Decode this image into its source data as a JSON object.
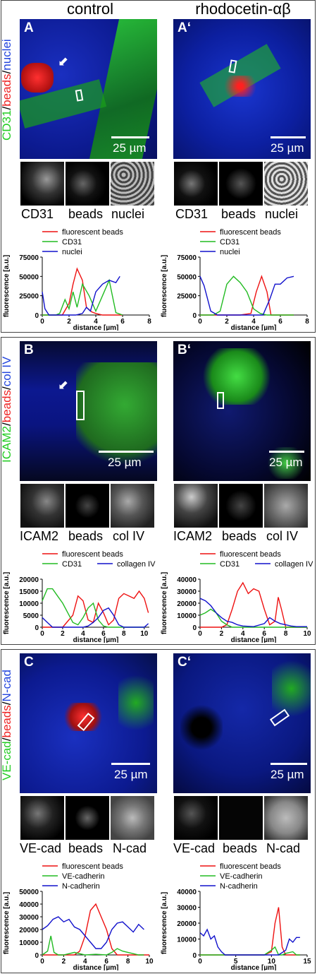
{
  "columns": {
    "left": "control",
    "right": "rhodocetin-αβ"
  },
  "rows": [
    {
      "side_label": [
        "CD31",
        "/",
        "beads",
        "/",
        "nuclei"
      ],
      "side_colors": [
        "#22cc22",
        "#000000",
        "#ee2222",
        "#000000",
        "#2244dd"
      ],
      "left": {
        "corner": "A",
        "scale": "25 µm",
        "thumbs": [
          "CD31",
          "beads",
          "nuclei"
        ]
      },
      "right": {
        "corner": "A‘",
        "scale": "25 µm",
        "thumbs": [
          "CD31",
          "beads",
          "nuclei"
        ]
      }
    },
    {
      "side_label": [
        "ICAM2",
        "/",
        "beads",
        "/",
        "col IV"
      ],
      "side_colors": [
        "#22cc22",
        "#000000",
        "#ee2222",
        "#000000",
        "#2244dd"
      ],
      "left": {
        "corner": "B",
        "scale": "25 µm",
        "thumbs": [
          "ICAM2",
          "beads",
          "col IV"
        ]
      },
      "right": {
        "corner": "B‘",
        "scale": "25 µm",
        "thumbs": [
          "ICAM2",
          "beads",
          "col IV"
        ]
      }
    },
    {
      "side_label": [
        "VE-cad",
        "/",
        "beads",
        "/",
        "N-cad"
      ],
      "side_colors": [
        "#22cc22",
        "#000000",
        "#ee2222",
        "#000000",
        "#2244dd"
      ],
      "left": {
        "corner": "C",
        "scale": "25 µm",
        "thumbs": [
          "VE-cad",
          "beads",
          "N-cad"
        ]
      },
      "right": {
        "corner": "C‘",
        "scale": "25 µm",
        "thumbs": [
          "VE-cad",
          "beads",
          "N-cad"
        ]
      }
    }
  ],
  "colors": {
    "red": "#ee1111",
    "green": "#22bb22",
    "blue": "#1111cc"
  },
  "chart_data": [
    {
      "id": "A-left",
      "type": "line",
      "ylabel": "fluorescence [a.u.]",
      "xlabel": "distance [µm]",
      "xlim": [
        0,
        8
      ],
      "xticks": [
        0,
        2,
        4,
        6,
        8
      ],
      "ylim": [
        0,
        75000
      ],
      "yticks": [
        0,
        25000,
        50000,
        75000
      ],
      "legend": [
        "fluorescent beads",
        "CD31",
        "nuclei"
      ],
      "series": [
        {
          "name": "fluorescent beads",
          "color": "red",
          "x": [
            0,
            0.5,
            1,
            1.5,
            2,
            2.3,
            2.6,
            3,
            3.3,
            3.7,
            4,
            4.5,
            5,
            5.5,
            6
          ],
          "y": [
            0,
            0,
            0,
            0,
            15000,
            40000,
            60000,
            45000,
            10000,
            4000,
            2000,
            0,
            0,
            0,
            0
          ]
        },
        {
          "name": "CD31",
          "color": "green",
          "x": [
            0,
            0.5,
            1,
            1.3,
            1.7,
            2,
            2.3,
            2.6,
            3,
            3.5,
            4,
            4.5,
            5,
            5.5,
            6
          ],
          "y": [
            0,
            0,
            0,
            2000,
            20000,
            8000,
            30000,
            10000,
            40000,
            25000,
            5000,
            25000,
            45000,
            3000,
            0
          ]
        },
        {
          "name": "nuclei",
          "color": "blue",
          "x": [
            0,
            0.2,
            0.5,
            1,
            1.5,
            2,
            2.5,
            3,
            3.3,
            3.6,
            4,
            4.5,
            5,
            5.5,
            5.8
          ],
          "y": [
            30000,
            8000,
            0,
            0,
            0,
            0,
            0,
            2000,
            10000,
            5000,
            30000,
            40000,
            45000,
            42000,
            50000
          ]
        }
      ]
    },
    {
      "id": "A-right",
      "type": "line",
      "ylabel": "fluorescence [a.u.]",
      "xlabel": "distance [µm]",
      "xlim": [
        0,
        8
      ],
      "xticks": [
        0,
        2,
        4,
        6,
        8
      ],
      "ylim": [
        0,
        75000
      ],
      "yticks": [
        0,
        25000,
        50000,
        75000
      ],
      "legend": [
        "fluorescent beads",
        "CD31",
        "nuclei"
      ],
      "series": [
        {
          "name": "fluorescent beads",
          "color": "red",
          "x": [
            0,
            1,
            2,
            3,
            3.8,
            4.2,
            4.6,
            5,
            5.3,
            6,
            7
          ],
          "y": [
            0,
            0,
            0,
            0,
            2000,
            30000,
            50000,
            30000,
            0,
            0,
            0
          ]
        },
        {
          "name": "CD31",
          "color": "green",
          "x": [
            0,
            1,
            1.5,
            2,
            2.5,
            3,
            3.5,
            4,
            4.5,
            5,
            6,
            7
          ],
          "y": [
            0,
            0,
            5000,
            40000,
            50000,
            42000,
            30000,
            8000,
            2000,
            0,
            0,
            0
          ]
        },
        {
          "name": "nuclei",
          "color": "blue",
          "x": [
            0,
            0.3,
            0.8,
            1.3,
            2,
            3,
            4,
            4.7,
            5.2,
            5.6,
            6,
            6.5,
            7
          ],
          "y": [
            50000,
            38000,
            5000,
            0,
            0,
            0,
            0,
            0,
            20000,
            40000,
            40000,
            48000,
            50000
          ]
        }
      ]
    },
    {
      "id": "B-left",
      "type": "line",
      "ylabel": "fluorescence [a.u.]",
      "xlabel": "distance [µm]",
      "xlim": [
        0,
        10.5
      ],
      "xticks": [
        0,
        2,
        4,
        6,
        8,
        10
      ],
      "ylim": [
        0,
        20000
      ],
      "yticks": [
        0,
        5000,
        10000,
        15000,
        20000
      ],
      "legend": [
        "fluorescent beads",
        "CD31",
        "collagen IV"
      ],
      "series": [
        {
          "name": "fluorescent beads",
          "color": "red",
          "x": [
            0,
            1,
            2,
            3,
            3.5,
            4,
            4.5,
            5,
            5.5,
            6,
            6.5,
            7,
            7.5,
            8,
            8.5,
            9,
            9.5,
            10,
            10.4
          ],
          "y": [
            0,
            0,
            0,
            5000,
            13000,
            11000,
            3000,
            2000,
            10000,
            6000,
            1000,
            3000,
            12000,
            14000,
            13000,
            12000,
            15000,
            12000,
            6000
          ]
        },
        {
          "name": "CD31",
          "color": "green",
          "x": [
            0,
            0.5,
            1,
            1.5,
            2,
            2.5,
            3,
            3.5,
            4,
            4.5,
            5,
            5.5,
            6,
            6.5,
            7,
            8,
            9,
            10
          ],
          "y": [
            11000,
            16000,
            16000,
            13000,
            10000,
            6000,
            2000,
            1000,
            4000,
            8000,
            10000,
            3000,
            500,
            0,
            0,
            0,
            0,
            0
          ]
        },
        {
          "name": "collagen IV",
          "color": "blue",
          "x": [
            0,
            0.5,
            1,
            2,
            3,
            4,
            4.5,
            5,
            5.5,
            6,
            6.5,
            7,
            7.5,
            8,
            9,
            10,
            10.4
          ],
          "y": [
            4000,
            2000,
            0,
            0,
            0,
            0,
            500,
            2000,
            4000,
            7000,
            8000,
            5000,
            1000,
            0,
            0,
            0,
            1500
          ]
        }
      ]
    },
    {
      "id": "B-right",
      "type": "line",
      "ylabel": "fluorescence [a.u.]",
      "xlabel": "distance [µm]",
      "xlim": [
        0,
        10
      ],
      "xticks": [
        0,
        2,
        4,
        6,
        8,
        10
      ],
      "ylim": [
        0,
        40000
      ],
      "yticks": [
        0,
        10000,
        20000,
        30000,
        40000
      ],
      "legend": [
        "fluorescent beads",
        "CD31",
        "collagen IV"
      ],
      "series": [
        {
          "name": "fluorescent beads",
          "color": "red",
          "x": [
            0,
            1,
            2,
            2.5,
            3,
            3.5,
            4,
            4.5,
            5,
            5.5,
            6,
            6.5,
            7,
            7.3,
            7.6,
            8,
            9,
            10
          ],
          "y": [
            0,
            0,
            0,
            2000,
            15000,
            30000,
            37000,
            28000,
            32000,
            30000,
            15000,
            2000,
            5000,
            25000,
            15000,
            0,
            0,
            0
          ]
        },
        {
          "name": "CD31",
          "color": "green",
          "x": [
            0,
            0.5,
            1,
            1.5,
            2,
            2.5,
            3,
            3.5,
            4,
            5,
            6,
            7,
            8,
            9,
            10
          ],
          "y": [
            10000,
            12000,
            15000,
            12000,
            5000,
            2000,
            0,
            0,
            0,
            0,
            0,
            0,
            0,
            0,
            0
          ]
        },
        {
          "name": "collagen IV",
          "color": "blue",
          "x": [
            0,
            0.5,
            1,
            1.5,
            2,
            2.5,
            3,
            3.5,
            4,
            5,
            6,
            6.5,
            7,
            7.5,
            8,
            8.5,
            9,
            10
          ],
          "y": [
            24000,
            22000,
            18000,
            12000,
            8000,
            5000,
            4000,
            2000,
            1000,
            500,
            3000,
            8000,
            5000,
            3000,
            2000,
            1000,
            500,
            500
          ]
        }
      ]
    },
    {
      "id": "C-left",
      "type": "line",
      "ylabel": "fluorescence [a.u.]",
      "xlabel": "distance [µm]",
      "xlim": [
        0,
        10
      ],
      "xticks": [
        0,
        2,
        4,
        6,
        8,
        10
      ],
      "ylim": [
        0,
        50000
      ],
      "yticks": [
        0,
        10000,
        20000,
        30000,
        40000,
        50000
      ],
      "legend": [
        "fluorescent beads",
        "VE-cadherin",
        "N-cadherin"
      ],
      "series": [
        {
          "name": "fluorescent beads",
          "color": "red",
          "x": [
            0,
            1,
            2,
            3,
            3.5,
            4,
            4.5,
            5,
            5.5,
            6,
            6.5,
            7,
            8,
            9,
            10
          ],
          "y": [
            0,
            0,
            0,
            0,
            3000,
            15000,
            35000,
            40000,
            30000,
            20000,
            5000,
            0,
            0,
            0,
            0
          ]
        },
        {
          "name": "VE-cadherin",
          "color": "green",
          "x": [
            0,
            0.5,
            0.8,
            1.1,
            1.5,
            2,
            3,
            4,
            5,
            6,
            6.5,
            7,
            7.5,
            8,
            8.5,
            9,
            9.5
          ],
          "y": [
            0,
            3000,
            15000,
            2000,
            0,
            0,
            2000,
            0,
            500,
            0,
            2000,
            5000,
            3000,
            2000,
            1000,
            0,
            0
          ]
        },
        {
          "name": "N-cadherin",
          "color": "blue",
          "x": [
            0,
            0.5,
            1,
            1.5,
            2,
            2.5,
            3,
            3.5,
            4,
            4.5,
            5,
            5.5,
            6,
            6.5,
            7,
            7.5,
            8,
            8.5,
            9,
            9.5
          ],
          "y": [
            20000,
            23000,
            28000,
            30000,
            26000,
            28000,
            22000,
            20000,
            15000,
            10000,
            5000,
            5000,
            10000,
            20000,
            25000,
            26000,
            22000,
            18000,
            24000,
            20000
          ]
        }
      ]
    },
    {
      "id": "C-right",
      "type": "line",
      "ylabel": "fluorescence [a.u.]",
      "xlabel": "distance [µm]",
      "xlim": [
        0,
        15
      ],
      "xticks": [
        0,
        5,
        10,
        15
      ],
      "ylim": [
        0,
        40000
      ],
      "yticks": [
        0,
        10000,
        20000,
        30000,
        40000
      ],
      "legend": [
        "fluorescent beads",
        "VE-cadherin",
        "N-cadherin"
      ],
      "series": [
        {
          "name": "fluorescent beads",
          "color": "red",
          "x": [
            0,
            5,
            9,
            10,
            10.5,
            11,
            11.5,
            12,
            14
          ],
          "y": [
            0,
            0,
            0,
            2000,
            20000,
            30000,
            5000,
            0,
            0
          ]
        },
        {
          "name": "VE-cadherin",
          "color": "green",
          "x": [
            0,
            5,
            9,
            10,
            10.5,
            11,
            11.5,
            12,
            13,
            13.5,
            14
          ],
          "y": [
            0,
            0,
            0,
            3000,
            5000,
            0,
            0,
            1000,
            2000,
            0,
            0
          ]
        },
        {
          "name": "N-cadherin",
          "color": "blue",
          "x": [
            0,
            0.5,
            1,
            1.5,
            2,
            2.5,
            3,
            3.5,
            4,
            6,
            8,
            10,
            11,
            12,
            12.5,
            13,
            13.5,
            14
          ],
          "y": [
            14000,
            12000,
            16000,
            10000,
            12000,
            5000,
            2000,
            0,
            0,
            0,
            0,
            0,
            0,
            3000,
            10000,
            8000,
            11000,
            11000
          ]
        }
      ]
    }
  ]
}
